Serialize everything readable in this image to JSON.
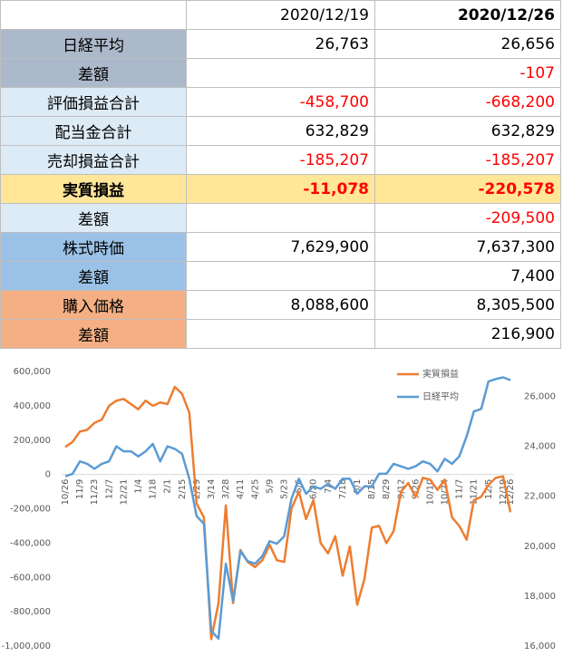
{
  "table": {
    "columns": [
      "2020/12/19",
      "2020/12/26"
    ],
    "rows": [
      {
        "label": "日経平均",
        "values": [
          "26,763",
          "26,656"
        ]
      },
      {
        "label": "差額",
        "values": [
          null,
          "-107"
        ]
      },
      {
        "label": "評価損益合計",
        "values": [
          "-458,700",
          "-668,200"
        ]
      },
      {
        "label": "配当金合計",
        "values": [
          "632,829",
          "632,829"
        ]
      },
      {
        "label": "売却損益合計",
        "values": [
          "-185,207",
          "-185,207"
        ]
      },
      {
        "label": "実質損益",
        "values": [
          "-11,078",
          "-220,578"
        ]
      },
      {
        "label": "差額",
        "values": [
          null,
          "-209,500"
        ]
      },
      {
        "label": "株式時価",
        "values": [
          "7,629,900",
          "7,637,300"
        ]
      },
      {
        "label": "差額",
        "values": [
          null,
          "7,400"
        ]
      },
      {
        "label": "購入価格",
        "values": [
          "8,088,600",
          "8,305,500"
        ]
      },
      {
        "label": "差額",
        "values": [
          null,
          "216,900"
        ]
      }
    ]
  },
  "chart_data": {
    "type": "line",
    "categories": [
      "10/26",
      null,
      "11/9",
      null,
      "11/23",
      null,
      "12/7",
      null,
      "12/21",
      null,
      "1/4",
      null,
      "1/18",
      null,
      "2/1",
      null,
      "2/15",
      null,
      "2/29",
      null,
      "3/14",
      null,
      "3/28",
      null,
      "4/11",
      null,
      "4/25",
      null,
      "5/9",
      null,
      "5/23",
      null,
      "6/6",
      null,
      "6/20",
      null,
      "7/4",
      null,
      "7/18",
      null,
      "8/1",
      null,
      "8/15",
      null,
      "8/29",
      null,
      "9/12",
      null,
      "9/26",
      null,
      "10/10",
      null,
      "10/24",
      null,
      "11/7",
      null,
      "11/21",
      null,
      "12/5",
      null,
      "12/19",
      "12/26"
    ],
    "series": [
      {
        "name": "実質損益",
        "color": "#ed7d31",
        "axis": "y",
        "values": [
          160000,
          190000,
          250000,
          260000,
          300000,
          320000,
          400000,
          430000,
          440000,
          410000,
          380000,
          430000,
          400000,
          420000,
          410000,
          510000,
          470000,
          360000,
          -170000,
          -250000,
          -960000,
          -750000,
          -180000,
          -750000,
          -440000,
          -510000,
          -540000,
          -500000,
          -410000,
          -500000,
          -510000,
          -200000,
          -100000,
          -260000,
          -150000,
          -400000,
          -460000,
          -360000,
          -590000,
          -420000,
          -760000,
          -610000,
          -310000,
          -300000,
          -400000,
          -330000,
          -100000,
          -50000,
          -130000,
          -20000,
          -30000,
          -90000,
          -30000,
          -250000,
          -300000,
          -380000,
          -150000,
          -130000,
          -60000,
          -20000,
          -11078,
          -220578
        ]
      },
      {
        "name": "日経平均",
        "color": "#5b9bd5",
        "axis": "y2",
        "values": [
          22800,
          22900,
          23400,
          23300,
          23100,
          23300,
          23400,
          24000,
          23800,
          23800,
          23600,
          23800,
          24100,
          23400,
          24000,
          23900,
          23700,
          22700,
          21200,
          20900,
          16600,
          16300,
          19300,
          17800,
          19800,
          19400,
          19300,
          19600,
          20200,
          20100,
          20400,
          21900,
          22700,
          22100,
          22400,
          22300,
          22500,
          22300,
          22700,
          22700,
          22100,
          22400,
          22400,
          22900,
          22900,
          23300,
          23200,
          23100,
          23200,
          23400,
          23300,
          23000,
          23500,
          23300,
          23600,
          24400,
          25400,
          25500,
          26600,
          26700,
          26763,
          26656
        ]
      }
    ],
    "ylim": [
      -1000000,
      600000
    ],
    "yticks": [
      {
        "value": -1000000,
        "label": "-1,000,000"
      },
      {
        "value": -800000,
        "label": "-800,000"
      },
      {
        "value": -600000,
        "label": "-600,000"
      },
      {
        "value": -400000,
        "label": "-400,000"
      },
      {
        "value": -200000,
        "label": "-200,000"
      },
      0,
      {
        "value": 200000,
        "label": "200,000"
      },
      {
        "value": 400000,
        "label": "400,000"
      },
      {
        "value": 600000,
        "label": "600,000"
      }
    ],
    "y2lim": [
      16000,
      27000
    ],
    "y2ticks": [
      {
        "value": 16000,
        "label": "16,000"
      },
      {
        "value": 18000,
        "label": "18,000"
      },
      {
        "value": 20000,
        "label": "20,000"
      },
      {
        "value": 22000,
        "label": "22,000"
      },
      {
        "value": 24000,
        "label": "24,000"
      },
      {
        "value": 26000,
        "label": "26,000"
      }
    ],
    "legend": "top-right"
  }
}
